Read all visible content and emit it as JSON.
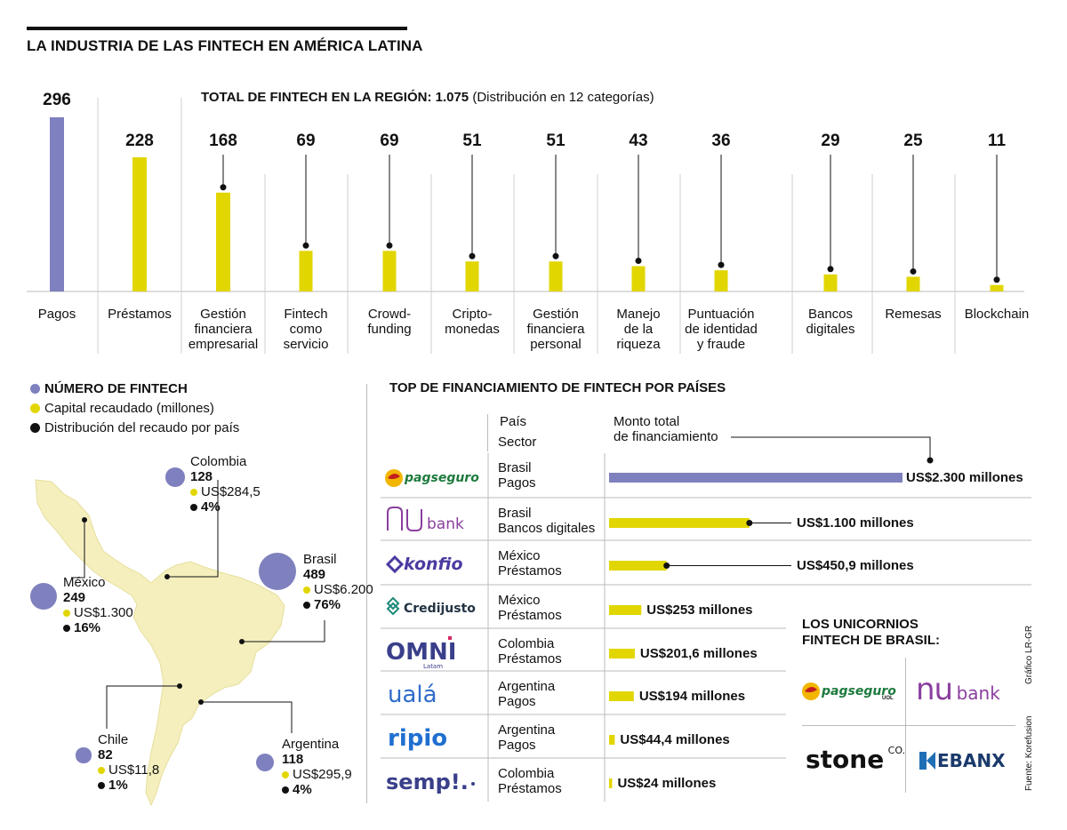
{
  "title": "LA INDUSTRIA DE LAS FINTECH EN AMÉRICA LATINA",
  "subtitle": {
    "bold": "TOTAL DE FINTECH EN LA REGIÓN: 1.075",
    "normal": "(Distribución en 12 categorías)"
  },
  "colors": {
    "purple": "#7f80be",
    "yellow": "#e2d600",
    "black": "#111111",
    "map": "#f5efbe"
  },
  "chart_data": [
    {
      "type": "bar",
      "title": "TOTAL DE FINTECH EN LA REGIÓN: 1.075",
      "categories": [
        "Pagos",
        "Préstamos",
        "Gestión financiera empresarial",
        "Fintech como servicio",
        "Crowd-funding",
        "Cripto-monedas",
        "Gestión financiera personal",
        "Manejo de la riqueza",
        "Puntuación de identidad y fraude",
        "Bancos digitales",
        "Remesas",
        "Blockchain"
      ],
      "values": [
        296,
        228,
        168,
        69,
        69,
        51,
        51,
        43,
        36,
        29,
        25,
        11
      ],
      "category_lines": [
        [
          "Pagos"
        ],
        [
          "Préstamos"
        ],
        [
          "Gestión",
          "financiera",
          "empresarial"
        ],
        [
          "Fintech",
          "como",
          "servicio"
        ],
        [
          "Crowd-",
          "funding"
        ],
        [
          "Cripto-",
          "monedas"
        ],
        [
          "Gestión",
          "financiera",
          "personal"
        ],
        [
          "Manejo",
          "de la",
          "riqueza"
        ],
        [
          "Puntuación",
          "de identidad",
          "y fraude"
        ],
        [
          "Bancos",
          "digitales"
        ],
        [
          "Remesas"
        ],
        [
          "Blockchain"
        ]
      ]
    },
    {
      "type": "bar",
      "title": "TOP DE FINANCIAMIENTO DE FINTECH POR PAÍSES",
      "categories": [
        "pagseguro",
        "nubank",
        "konfio",
        "Credijusto",
        "OMNI",
        "ualá",
        "ripio",
        "sempli"
      ],
      "values": [
        2300,
        1100,
        450.9,
        253,
        201.6,
        194,
        44.4,
        24
      ],
      "unit": "millones"
    }
  ],
  "legend": {
    "n": "NÚMERO DE FINTECH",
    "cap": "Capital recaudado (millones)",
    "dist": "Distribución del recaudo por país"
  },
  "countries": [
    {
      "name": "Colombia",
      "num": "128",
      "cap": "US$284,5",
      "pct": "4%"
    },
    {
      "name": "Brasil",
      "num": "489",
      "cap": "US$6.200",
      "pct": "76%"
    },
    {
      "name": "México",
      "num": "249",
      "cap": "US$1.300",
      "pct": "16%"
    },
    {
      "name": "Chile",
      "num": "82",
      "cap": "US$11,8",
      "pct": "1%"
    },
    {
      "name": "Argentina",
      "num": "118",
      "cap": "US$295,9",
      "pct": "4%"
    }
  ],
  "top": {
    "title": "TOP DE FINANCIAMIENTO DE FINTECH POR PAÍSES",
    "head_country": "País",
    "head_sector": "Sector",
    "head_total": "Monto total\nde financiamiento",
    "rows": [
      {
        "logo": "pagseguro",
        "logo_sub": "UOL",
        "country": "Brasil",
        "sector": "Pagos",
        "amount": "US$2.300 millones"
      },
      {
        "logo": "nu",
        "logo_sub": "bank",
        "country": "Brasil",
        "sector": "Bancos digitales",
        "amount": "US$1.100 millones"
      },
      {
        "logo": "konfio",
        "logo_sub": "",
        "country": "México",
        "sector": "Préstamos",
        "amount": "US$450,9 millones"
      },
      {
        "logo": "Credijusto",
        "logo_sub": "",
        "country": "México",
        "sector": "Préstamos",
        "amount": "US$253 millones"
      },
      {
        "logo": "OMNI",
        "logo_sub": "Latam",
        "country": "Colombia",
        "sector": "Préstamos",
        "amount": "US$201,6 millones"
      },
      {
        "logo": "ualá",
        "logo_sub": "",
        "country": "Argentina",
        "sector": "Pagos",
        "amount": "US$194 millones"
      },
      {
        "logo": "ripio",
        "logo_sub": "",
        "country": "Argentina",
        "sector": "Pagos",
        "amount": "US$44,4 millones"
      },
      {
        "logo": "sempl",
        "logo_sub": "",
        "country": "Colombia",
        "sector": "Préstamos",
        "amount": "US$24 millones"
      }
    ]
  },
  "unicorns": {
    "title": "LOS UNICORNIOS\nFINTECH DE BRASIL:",
    "logos": [
      "pagseguro",
      "nubank",
      "stone",
      "EBANX"
    ],
    "pag_sub": "UOL",
    "nu": "nu",
    "nu_sub": "bank",
    "stone": "stone",
    "stone_sup": "CO.",
    "ebanx": "EBANX"
  },
  "credit": "Gráfico LR-GR",
  "source": "Fuente: Korefusion"
}
